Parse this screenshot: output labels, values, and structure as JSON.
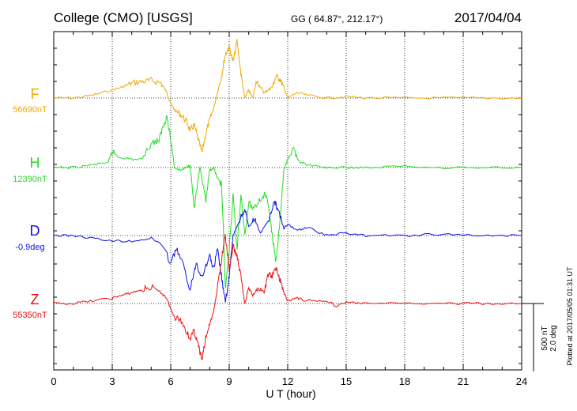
{
  "header": {
    "station": "College (CMO)  [USGS]",
    "coords": "GG ( 64.87°, 212.17°)",
    "date": "2017/04/04"
  },
  "footer_note": "Plotted at 2017/05/05 01:31  UT",
  "scale_labels": [
    "500 nT",
    "2.0 deg"
  ],
  "chart_data": {
    "type": "line",
    "title": "College (CMO)  [USGS]",
    "xlabel": "U T (hour)",
    "ylabel": "",
    "xlim": [
      0,
      24
    ],
    "x_ticks": [
      0,
      3,
      6,
      9,
      12,
      15,
      18,
      21,
      24
    ],
    "grid": true,
    "series": [
      {
        "name": "F",
        "base_label": "56690nT",
        "color": "#f0a800",
        "x": [
          0,
          1,
          2,
          3,
          3.5,
          4,
          4.5,
          5,
          5.5,
          5.8,
          6,
          6.2,
          6.5,
          6.8,
          7,
          7.2,
          7.4,
          7.6,
          7.8,
          8,
          8.2,
          8.4,
          8.6,
          8.8,
          9,
          9.2,
          9.4,
          9.6,
          9.8,
          10,
          10.2,
          10.4,
          10.6,
          10.8,
          11,
          11.2,
          11.4,
          11.6,
          11.8,
          12,
          12.5,
          13,
          14,
          15,
          16,
          18,
          20,
          22,
          24
        ],
        "y": [
          0,
          0,
          20,
          60,
          80,
          110,
          120,
          130,
          110,
          40,
          -40,
          -90,
          -120,
          -170,
          -240,
          -200,
          -300,
          -400,
          -260,
          -160,
          -80,
          40,
          160,
          320,
          380,
          260,
          420,
          180,
          0,
          60,
          0,
          120,
          80,
          40,
          60,
          80,
          160,
          140,
          80,
          0,
          40,
          20,
          0,
          10,
          0,
          0,
          0,
          0,
          0
        ]
      },
      {
        "name": "H",
        "base_label": "12390nT",
        "color": "#22dd22",
        "x": [
          0,
          1,
          2,
          2.8,
          3,
          3.3,
          4,
          4.5,
          5,
          5.4,
          5.6,
          5.8,
          6,
          6.2,
          6.5,
          6.8,
          7,
          7.2,
          7.5,
          7.8,
          8,
          8.2,
          8.4,
          8.6,
          8.7,
          8.8,
          9,
          9.2,
          9.4,
          9.6,
          9.8,
          10,
          10.2,
          10.5,
          10.8,
          11,
          11.2,
          11.4,
          11.6,
          11.8,
          12,
          12.3,
          12.6,
          13,
          14,
          15,
          16,
          18,
          20,
          22,
          24
        ],
        "y": [
          0,
          0,
          20,
          40,
          120,
          80,
          60,
          60,
          180,
          200,
          300,
          380,
          200,
          0,
          -20,
          0,
          20,
          -300,
          0,
          -250,
          -20,
          0,
          -80,
          -120,
          -450,
          -900,
          -600,
          -200,
          -600,
          -200,
          -500,
          -250,
          -300,
          -250,
          -200,
          -250,
          -500,
          -700,
          -400,
          -20,
          60,
          140,
          40,
          20,
          0,
          0,
          0,
          10,
          0,
          0,
          0
        ]
      },
      {
        "name": "D",
        "base_label": "-0.9deg",
        "color": "#1010ee",
        "x": [
          0,
          1,
          2,
          3,
          4,
          5,
          5.5,
          6,
          6.3,
          6.6,
          7,
          7.3,
          7.6,
          8,
          8.2,
          8.4,
          8.6,
          8.8,
          9,
          9.2,
          9.5,
          9.8,
          10,
          10.3,
          10.6,
          11,
          11.3,
          11.5,
          11.8,
          12,
          12.5,
          13,
          14,
          15,
          16,
          18,
          20,
          22,
          24
        ],
        "y": [
          0,
          0,
          -20,
          -40,
          -40,
          -20,
          -60,
          -200,
          -100,
          -200,
          -400,
          -200,
          -300,
          -150,
          -250,
          -100,
          -300,
          -500,
          -300,
          0,
          100,
          200,
          60,
          120,
          20,
          100,
          250,
          200,
          50,
          80,
          40,
          60,
          0,
          20,
          0,
          0,
          10,
          0,
          0
        ]
      },
      {
        "name": "Z",
        "base_label": "55350nT",
        "color": "#ee1010",
        "x": [
          0,
          1,
          2,
          3,
          3.5,
          4,
          4.5,
          5,
          5.5,
          5.8,
          6,
          6.2,
          6.5,
          6.8,
          7,
          7.2,
          7.4,
          7.6,
          7.8,
          8,
          8.2,
          8.4,
          8.6,
          8.8,
          9,
          9.2,
          9.4,
          9.6,
          9.8,
          10,
          10.2,
          10.5,
          10.8,
          11,
          11.2,
          11.4,
          11.6,
          11.8,
          12,
          12.5,
          13,
          14,
          14.5,
          15,
          16,
          18,
          20,
          22,
          24
        ],
        "y": [
          0,
          0,
          20,
          40,
          60,
          80,
          100,
          120,
          80,
          40,
          -40,
          -100,
          -120,
          -200,
          -260,
          -200,
          -300,
          -420,
          -250,
          -150,
          -60,
          120,
          320,
          500,
          250,
          420,
          350,
          200,
          0,
          120,
          60,
          120,
          80,
          220,
          200,
          260,
          180,
          80,
          20,
          40,
          20,
          20,
          -20,
          10,
          0,
          0,
          0,
          0,
          0
        ]
      }
    ]
  }
}
